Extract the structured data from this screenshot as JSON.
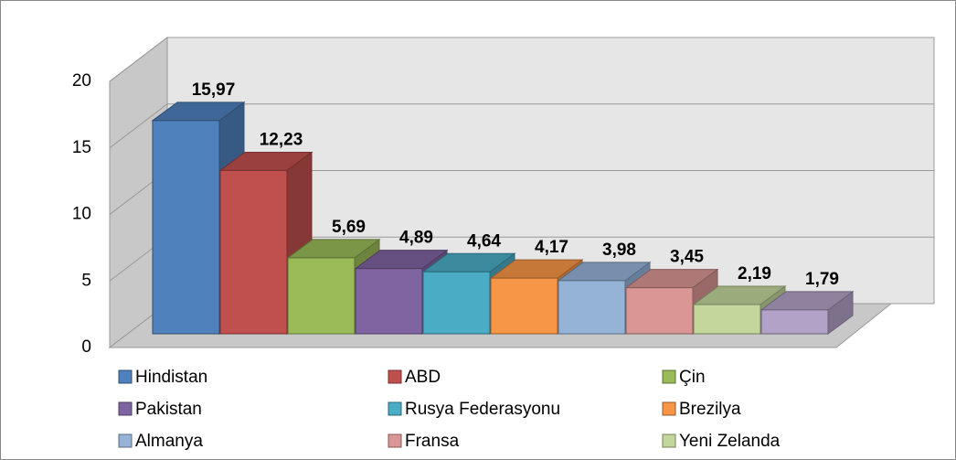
{
  "chart_data": {
    "type": "bar3d",
    "categories": [
      "Hindistan",
      "ABD",
      "Çin",
      "Pakistan",
      "Rusya Federasyonu",
      "Brezilya",
      "Almanya",
      "Fransa",
      "Yeni Zelanda",
      null
    ],
    "values": [
      15.97,
      12.23,
      5.69,
      4.89,
      4.64,
      4.17,
      3.98,
      3.45,
      2.19,
      1.79
    ],
    "value_labels": [
      "15,97",
      "12,23",
      "5,69",
      "4,89",
      "4,64",
      "4,17",
      "3,98",
      "3,45",
      "2,19",
      "1,79"
    ],
    "colors": [
      "#4f81bd",
      "#c0504d",
      "#9bbb59",
      "#8064a2",
      "#4bacc6",
      "#f79646",
      "#95b3d7",
      "#da9694",
      "#c3d69b",
      "#b2a2c7"
    ],
    "ylim": [
      0,
      20
    ],
    "yticks": [
      0,
      5,
      10,
      15,
      20
    ],
    "grid": true
  }
}
